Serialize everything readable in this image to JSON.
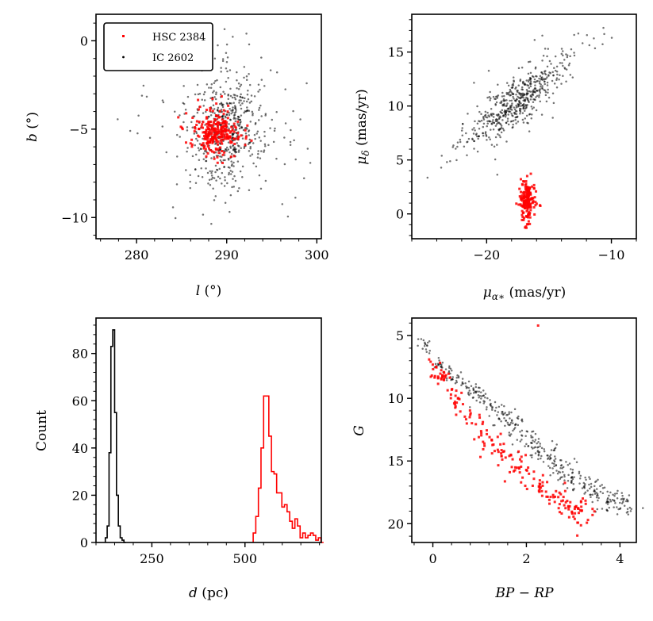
{
  "legend": {
    "entries": [
      {
        "label": "HSC 2384",
        "color": "#ff0000"
      },
      {
        "label": "IC 2602",
        "color": "#000000"
      }
    ]
  },
  "chart_data": [
    {
      "type": "scatter",
      "id": "lb",
      "xlabel": "l (°)",
      "ylabel": "b (°)",
      "xlim": [
        275.5,
        300.5
      ],
      "ylim": [
        -11.2,
        1.5
      ],
      "xticks": [
        280,
        290,
        300
      ],
      "xtick_labels": [
        "280",
        "290",
        "300"
      ],
      "yticks": [
        0,
        -5,
        -10
      ],
      "ytick_labels": [
        "0",
        "−5",
        "−10"
      ],
      "series": [
        {
          "name": "IC 2602",
          "color": "#000000",
          "marker": "dot",
          "center": [
            290.0,
            -5.0
          ],
          "spread": [
            3.5,
            2.4
          ],
          "x_range": [
            276.5,
            299.5
          ],
          "y_range": [
            -10.8,
            1.0
          ],
          "n_points": 600
        },
        {
          "name": "HSC 2384",
          "color": "#ff0000",
          "marker": "square",
          "center": [
            288.8,
            -5.2
          ],
          "spread": [
            1.6,
            0.9
          ],
          "x_range": [
            284.0,
            293.0
          ],
          "y_range": [
            -7.0,
            -3.0
          ],
          "n_points": 260
        }
      ],
      "legend_position": "upper-left"
    },
    {
      "type": "scatter",
      "id": "pm",
      "xlabel": "μα* (mas/yr)",
      "ylabel": "μδ (mas/yr)",
      "xlim": [
        -26,
        -8
      ],
      "ylim": [
        -2.3,
        18.5
      ],
      "xticks": [
        -20,
        -10
      ],
      "xtick_labels": [
        "−20",
        "−10"
      ],
      "yticks": [
        0,
        5,
        10,
        15
      ],
      "ytick_labels": [
        "0",
        "5",
        "10",
        "15"
      ],
      "series": [
        {
          "name": "IC 2602",
          "color": "#000000",
          "marker": "dot",
          "center": [
            -17.5,
            10.5
          ],
          "trend_slope": 0.85,
          "spread": [
            2.8,
            1.6
          ],
          "x_range": [
            -25.5,
            -9.0
          ],
          "y_range": [
            3.0,
            17.5
          ],
          "n_points": 550
        },
        {
          "name": "HSC 2384",
          "color": "#ff0000",
          "marker": "square",
          "center": [
            -16.8,
            1.2
          ],
          "spread": [
            0.45,
            1.3
          ],
          "x_range": [
            -17.8,
            -15.6
          ],
          "y_range": [
            -1.3,
            4.2
          ],
          "n_points": 180
        }
      ]
    },
    {
      "type": "histogram",
      "id": "dist",
      "xlabel": "d (pc)",
      "ylabel": "Count",
      "xlim": [
        100,
        705
      ],
      "ylim": [
        0,
        95
      ],
      "xticks": [
        250,
        500
      ],
      "xtick_labels": [
        "250",
        "500"
      ],
      "yticks": [
        0,
        20,
        40,
        60,
        80
      ],
      "ytick_labels": [
        "0",
        "20",
        "40",
        "60",
        "80"
      ],
      "series": [
        {
          "name": "IC 2602",
          "color": "#000000",
          "bin_width": 5,
          "bin_edges_start": 125,
          "counts": [
            2,
            7,
            38,
            83,
            90,
            55,
            20,
            7,
            2,
            1,
            0
          ]
        },
        {
          "name": "HSC 2384",
          "color": "#ff0000",
          "bin_width": 7,
          "bin_edges_start": 522,
          "counts": [
            4,
            11,
            23,
            40,
            62,
            62,
            45,
            30,
            29,
            21,
            21,
            15,
            16,
            13,
            9,
            6,
            10,
            7,
            2,
            4,
            2,
            3,
            4,
            3,
            1,
            2,
            0
          ]
        }
      ]
    },
    {
      "type": "scatter",
      "id": "cmd",
      "xlabel": "BP − RP",
      "ylabel": "G",
      "xlim": [
        -0.45,
        4.35
      ],
      "ylim": [
        21.5,
        3.6
      ],
      "y_inverted": true,
      "xticks": [
        0,
        2,
        4
      ],
      "xtick_labels": [
        "0",
        "2",
        "4"
      ],
      "yticks": [
        5,
        10,
        15,
        20
      ],
      "ytick_labels": [
        "5",
        "10",
        "15",
        "20"
      ],
      "series": [
        {
          "name": "IC 2602",
          "color": "#000000",
          "marker": "dot",
          "sequence": [
            [
              -0.3,
              4.7
            ],
            [
              0,
              7.0
            ],
            [
              0.5,
              8.3
            ],
            [
              1.0,
              9.9
            ],
            [
              1.5,
              11.5
            ],
            [
              2.0,
              13.1
            ],
            [
              2.5,
              14.6
            ],
            [
              3.0,
              16.3
            ],
            [
              3.5,
              17.5
            ],
            [
              4.2,
              18.7
            ]
          ],
          "n_points": 420
        },
        {
          "name": "HSC 2384",
          "color": "#ff0000",
          "marker": "square",
          "sequence": [
            [
              0.0,
              7.2
            ],
            [
              0.2,
              8.5
            ],
            [
              0.5,
              10.0
            ],
            [
              1.0,
              12.3
            ],
            [
              1.5,
              14.4
            ],
            [
              2.0,
              16.3
            ],
            [
              2.5,
              17.8
            ],
            [
              3.0,
              18.7
            ],
            [
              3.3,
              19.5
            ]
          ],
          "n_points": 210
        },
        {
          "name": "HSC 2384 (outlier)",
          "color": "#ff0000",
          "marker": "square",
          "points": [
            [
              2.25,
              4.2
            ]
          ]
        }
      ]
    }
  ]
}
